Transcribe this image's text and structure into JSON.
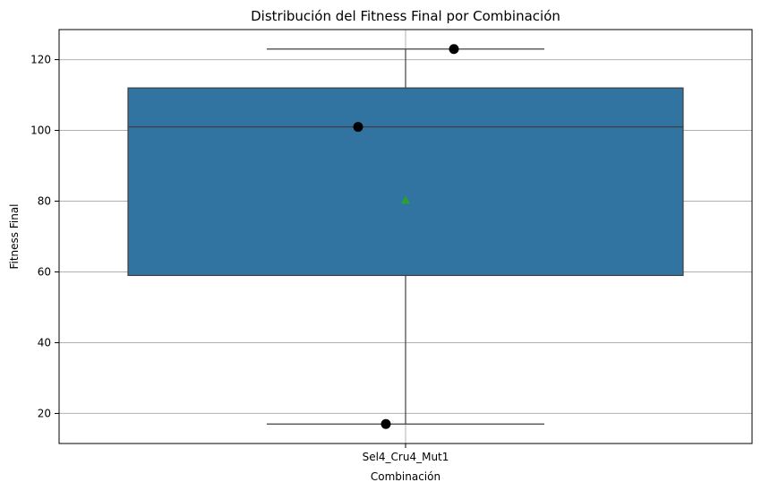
{
  "chart_data": {
    "type": "box",
    "title": "Distribución del Fitness Final por Combinación",
    "xlabel": "Combinación",
    "ylabel": "Fitness Final",
    "categories": [
      "Sel4_Cru4_Mut1"
    ],
    "ylim": [
      11.5,
      128.5
    ],
    "yticks": [
      20,
      40,
      60,
      80,
      100,
      120
    ],
    "grid": true,
    "box": {
      "min": 17,
      "q1": 59,
      "median": 101,
      "q3": 112,
      "max": 123,
      "mean": 80.3
    },
    "points": [
      123,
      101,
      17
    ],
    "colors": {
      "box_fill": "#3274a1",
      "box_edge": "#3f3f3f",
      "mean_marker": "#2ca02c",
      "point": "#000000",
      "grid": "#b0b0b0"
    }
  }
}
